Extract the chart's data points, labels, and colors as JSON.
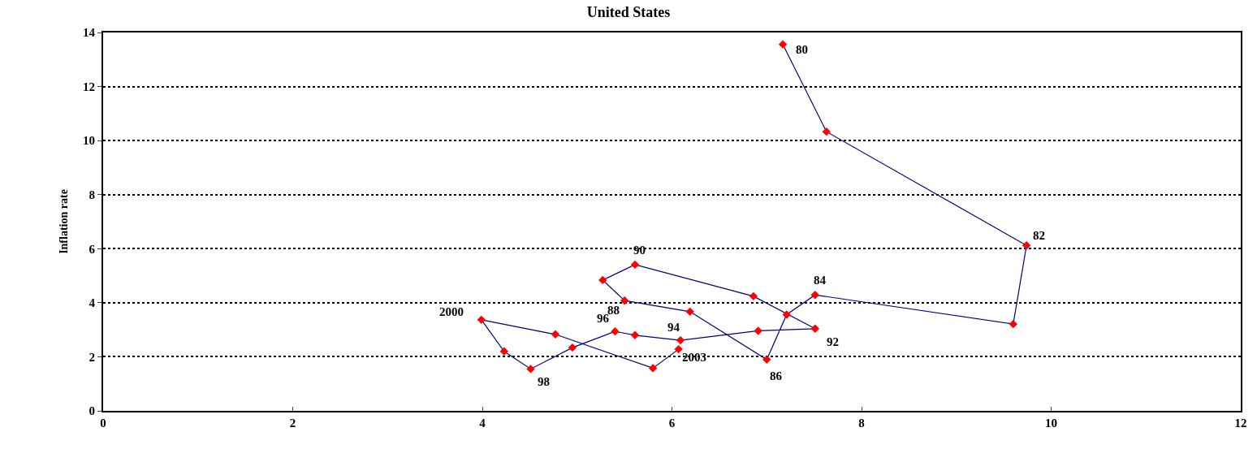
{
  "chart_data": {
    "type": "line",
    "title": "United States",
    "ylabel": "Inflation rate",
    "x": [
      7.17,
      7.63,
      9.74,
      9.6,
      7.51,
      7.21,
      7.0,
      6.19,
      5.5,
      5.27,
      5.61,
      6.86,
      7.51,
      6.91,
      6.09,
      5.61,
      5.4,
      4.95,
      4.51,
      4.23,
      3.99,
      4.77,
      5.8,
      6.07
    ],
    "series": [
      {
        "color": "#000080",
        "colors": [
          "#ff0000",
          "#ff0000",
          "#ff0000",
          "#ff0000",
          "#ff0000",
          "#ff0000",
          "#ff0000",
          "#ff0000",
          "#ff0000",
          "#ff0000",
          "#ff0000",
          "#ff0000",
          "#ff0000",
          "#ff0000",
          "#ff0000",
          "#ff0000",
          "#ff0000",
          "#ff0000",
          "#ff0000",
          "#ff0000",
          "#ff0000",
          "#ff0000",
          "#ff0000",
          "#ff0000"
        ],
        "values": [
          13.56,
          10.33,
          6.12,
          3.21,
          4.29,
          3.56,
          1.9,
          3.67,
          4.08,
          4.84,
          5.41,
          4.24,
          3.04,
          2.96,
          2.61,
          2.8,
          2.94,
          2.34,
          1.55,
          2.2,
          3.37,
          2.83,
          1.58,
          2.28
        ]
      }
    ],
    "marker": "diamond",
    "xlim": [
      0,
      12
    ],
    "xticks": [
      0,
      2,
      4,
      6,
      8,
      10,
      12
    ],
    "ylim": [
      0,
      14
    ],
    "yticks": [
      0,
      2,
      4,
      6,
      8,
      10,
      12,
      14
    ],
    "grid": "y",
    "annotations": [
      {
        "text": "80",
        "x": 7.17,
        "y": 13.56
      },
      {
        "text": "82",
        "x": 9.74,
        "y": 6.12
      },
      {
        "text": "84",
        "x": 7.51,
        "y": 4.29
      },
      {
        "text": "86",
        "x": 7.0,
        "y": 1.9
      },
      {
        "text": "88",
        "x": 5.5,
        "y": 4.08
      },
      {
        "text": "90",
        "x": 5.61,
        "y": 5.41
      },
      {
        "text": "92",
        "x": 7.51,
        "y": 3.04
      },
      {
        "text": "94",
        "x": 6.09,
        "y": 2.61
      },
      {
        "text": "96",
        "x": 5.4,
        "y": 2.94
      },
      {
        "text": "98",
        "x": 4.51,
        "y": 1.55
      },
      {
        "text": "2000",
        "x": 3.99,
        "y": 3.37
      },
      {
        "text": "2003",
        "x": 6.07,
        "y": 2.28
      }
    ]
  }
}
